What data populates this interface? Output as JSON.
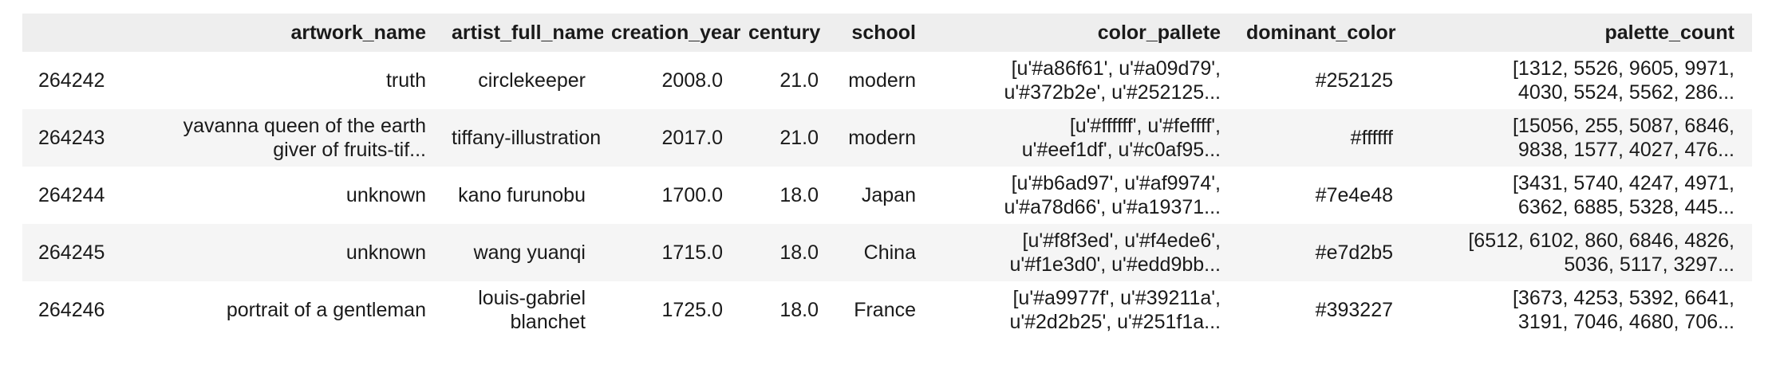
{
  "table": {
    "columns": [
      "",
      "artwork_name",
      "artist_full_name",
      "creation_year",
      "century",
      "school",
      "color_pallete",
      "dominant_color",
      "palette_count"
    ],
    "rows": [
      {
        "index": "264242",
        "artwork_name": [
          "truth"
        ],
        "artist_full_name": [
          "circlekeeper"
        ],
        "creation_year": "2008.0",
        "century": "21.0",
        "school": "modern",
        "color_pallete": [
          "[u'#a86f61', u'#a09d79',",
          "u'#372b2e', u'#252125..."
        ],
        "dominant_color": "#252125",
        "palette_count": [
          "[1312, 5526, 9605, 9971,",
          "4030, 5524, 5562, 286..."
        ]
      },
      {
        "index": "264243",
        "artwork_name": [
          "yavanna queen of the earth",
          "giver of fruits-tif..."
        ],
        "artist_full_name": [
          "tiffany-illustration"
        ],
        "creation_year": "2017.0",
        "century": "21.0",
        "school": "modern",
        "color_pallete": [
          "[u'#ffffff', u'#feffff',",
          "u'#eef1df', u'#c0af95..."
        ],
        "dominant_color": "#ffffff",
        "palette_count": [
          "[15056, 255, 5087, 6846,",
          "9838, 1577, 4027, 476..."
        ]
      },
      {
        "index": "264244",
        "artwork_name": [
          "unknown"
        ],
        "artist_full_name": [
          "kano furunobu"
        ],
        "creation_year": "1700.0",
        "century": "18.0",
        "school": "Japan",
        "color_pallete": [
          "[u'#b6ad97', u'#af9974',",
          "u'#a78d66', u'#a19371..."
        ],
        "dominant_color": "#7e4e48",
        "palette_count": [
          "[3431, 5740, 4247, 4971,",
          "6362, 6885, 5328, 445..."
        ]
      },
      {
        "index": "264245",
        "artwork_name": [
          "unknown"
        ],
        "artist_full_name": [
          "wang yuanqi"
        ],
        "creation_year": "1715.0",
        "century": "18.0",
        "school": "China",
        "color_pallete": [
          "[u'#f8f3ed', u'#f4ede6',",
          "u'#f1e3d0', u'#edd9bb..."
        ],
        "dominant_color": "#e7d2b5",
        "palette_count": [
          "[6512, 6102, 860, 6846, 4826,",
          "5036, 5117, 3297..."
        ]
      },
      {
        "index": "264246",
        "artwork_name": [
          "portrait of a gentleman"
        ],
        "artist_full_name": [
          "louis-gabriel",
          "blanchet"
        ],
        "creation_year": "1725.0",
        "century": "18.0",
        "school": "France",
        "color_pallete": [
          "[u'#a9977f', u'#39211a',",
          "u'#2d2b25', u'#251f1a..."
        ],
        "dominant_color": "#393227",
        "palette_count": [
          "[3673, 4253, 5392, 6641,",
          "3191, 7046, 4680, 706..."
        ]
      }
    ]
  }
}
